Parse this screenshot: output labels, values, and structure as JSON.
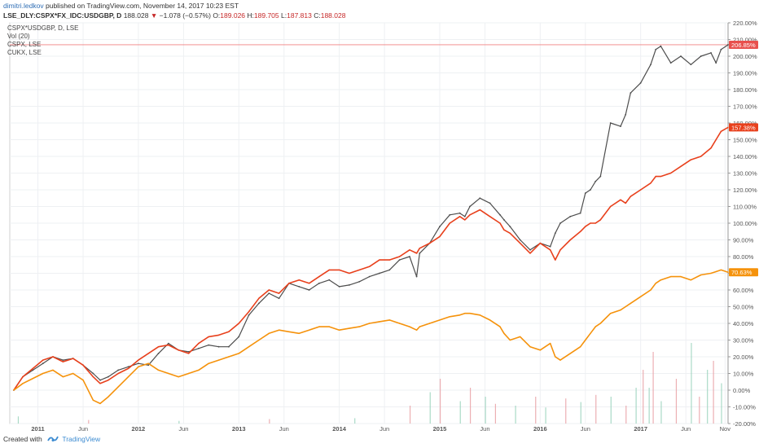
{
  "header": {
    "author": "dimitri.ledkov",
    "published_text": "published on TradingView.com, November 14, 2017 10:23 EST",
    "symbol": "LSE_DLY:CSPX*FX_IDC:USDGBP, D",
    "price": "188.028",
    "change_arrow": "▼",
    "change": "−1.078 (−0.57%)",
    "o_label": "O:",
    "o_value": "189.026",
    "h_label": "H:",
    "h_value": "189.705",
    "l_label": "L:",
    "l_value": "187.813",
    "c_label": "C:",
    "c_value": "188.028"
  },
  "legend": {
    "main": "CSPX*USDGBP, D, LSE",
    "vol": "Vol (20)",
    "cspx": "CSPX, LSE",
    "cukx": "CUKX, LSE"
  },
  "footer": {
    "created_with": "Created with",
    "brand": "TradingView"
  },
  "chart_data": {
    "type": "line",
    "xlabel": "",
    "ylabel": "",
    "y_unit": "%",
    "ylim": [
      -20,
      220
    ],
    "grid": true,
    "x_range": [
      2010.72,
      2017.87
    ],
    "x_tick_labels": [
      {
        "label": "2011",
        "x": 2011.0
      },
      {
        "label": "Jun",
        "x": 2011.45
      },
      {
        "label": "2012",
        "x": 2012.0
      },
      {
        "label": "Jun",
        "x": 2012.45
      },
      {
        "label": "2013",
        "x": 2013.0
      },
      {
        "label": "Jun",
        "x": 2013.45
      },
      {
        "label": "2014",
        "x": 2014.0
      },
      {
        "label": "Jun",
        "x": 2014.45
      },
      {
        "label": "2015",
        "x": 2015.0
      },
      {
        "label": "Jun",
        "x": 2015.45
      },
      {
        "label": "2016",
        "x": 2016.0
      },
      {
        "label": "Jun",
        "x": 2016.45
      },
      {
        "label": "2017",
        "x": 2017.0
      },
      {
        "label": "Jun",
        "x": 2017.45
      },
      {
        "label": "Nov",
        "x": 2017.84
      }
    ],
    "y_ticks": [
      220,
      210,
      200,
      190,
      180,
      170,
      160,
      150,
      140,
      130,
      120,
      110,
      100,
      90,
      80,
      70,
      60,
      50,
      40,
      30,
      20,
      10,
      0,
      -10,
      -20
    ],
    "y_tick_labels": [
      "220.00%",
      "210.00%",
      "200.00%",
      "190.00%",
      "180.00%",
      "170.00%",
      "160.00%",
      "150.00%",
      "140.00%",
      "130.00%",
      "120.00%",
      "110.00%",
      "100.00%",
      "90.00%",
      "80.00%",
      "70.00%",
      "60.00%",
      "50.00%",
      "40.00%",
      "30.00%",
      "20.00%",
      "10.00%",
      "0.00%",
      "-10.00%",
      "-20.00%"
    ],
    "reference_line": 206.85,
    "series": [
      {
        "name": "CSPX*USDGBP, D, LSE",
        "style": "candles",
        "color": "#4d4d4d",
        "last_label": "206.85%",
        "label_color": "#e8504d",
        "x": [
          2010.76,
          2010.85,
          2010.95,
          2011.05,
          2011.15,
          2011.25,
          2011.35,
          2011.45,
          2011.55,
          2011.62,
          2011.7,
          2011.8,
          2011.9,
          2012.0,
          2012.1,
          2012.2,
          2012.3,
          2012.4,
          2012.5,
          2012.6,
          2012.7,
          2012.8,
          2012.9,
          2013.0,
          2013.1,
          2013.2,
          2013.3,
          2013.4,
          2013.5,
          2013.6,
          2013.7,
          2013.8,
          2013.9,
          2014.0,
          2014.1,
          2014.2,
          2014.3,
          2014.4,
          2014.5,
          2014.6,
          2014.7,
          2014.77,
          2014.8,
          2014.9,
          2015.0,
          2015.1,
          2015.2,
          2015.25,
          2015.3,
          2015.4,
          2015.5,
          2015.6,
          2015.64,
          2015.7,
          2015.8,
          2015.9,
          2016.0,
          2016.1,
          2016.15,
          2016.2,
          2016.3,
          2016.4,
          2016.45,
          2016.5,
          2016.55,
          2016.6,
          2016.7,
          2016.8,
          2016.85,
          2016.9,
          2017.0,
          2017.1,
          2017.15,
          2017.2,
          2017.3,
          2017.4,
          2017.5,
          2017.6,
          2017.7,
          2017.75,
          2017.8,
          2017.87
        ],
        "values": [
          0,
          8,
          12,
          16,
          20,
          18,
          19,
          15,
          10,
          6,
          8,
          12,
          14,
          16,
          15,
          22,
          28,
          24,
          23,
          25,
          27,
          26,
          26,
          32,
          45,
          52,
          58,
          55,
          64,
          62,
          60,
          64,
          66,
          62,
          63,
          65,
          68,
          70,
          72,
          78,
          80,
          68,
          82,
          88,
          98,
          105,
          106,
          104,
          110,
          115,
          112,
          105,
          102,
          98,
          90,
          84,
          88,
          86,
          94,
          100,
          104,
          106,
          118,
          120,
          125,
          128,
          160,
          158,
          165,
          178,
          184,
          195,
          204,
          206,
          196,
          200,
          195,
          200,
          202,
          196,
          204,
          206.85
        ]
      },
      {
        "name": "CSPX, LSE",
        "style": "line",
        "color": "#e8401c",
        "last_label": "157.38%",
        "label_color": "#e8401c",
        "x": [
          2010.76,
          2010.85,
          2010.95,
          2011.05,
          2011.15,
          2011.25,
          2011.35,
          2011.45,
          2011.55,
          2011.62,
          2011.7,
          2011.8,
          2011.9,
          2012.0,
          2012.1,
          2012.2,
          2012.3,
          2012.4,
          2012.5,
          2012.6,
          2012.7,
          2012.8,
          2012.9,
          2013.0,
          2013.1,
          2013.2,
          2013.3,
          2013.4,
          2013.5,
          2013.6,
          2013.7,
          2013.8,
          2013.9,
          2014.0,
          2014.1,
          2014.2,
          2014.3,
          2014.4,
          2014.5,
          2014.6,
          2014.7,
          2014.77,
          2014.8,
          2014.9,
          2015.0,
          2015.1,
          2015.2,
          2015.25,
          2015.3,
          2015.4,
          2015.5,
          2015.6,
          2015.64,
          2015.7,
          2015.8,
          2015.9,
          2016.0,
          2016.1,
          2016.15,
          2016.2,
          2016.3,
          2016.4,
          2016.45,
          2016.5,
          2016.55,
          2016.6,
          2016.7,
          2016.8,
          2016.85,
          2016.9,
          2017.0,
          2017.1,
          2017.15,
          2017.2,
          2017.3,
          2017.4,
          2017.5,
          2017.6,
          2017.7,
          2017.75,
          2017.8,
          2017.87
        ],
        "values": [
          0,
          8,
          13,
          18,
          20,
          17,
          19,
          15,
          8,
          4,
          6,
          10,
          13,
          18,
          22,
          26,
          27,
          24,
          22,
          28,
          32,
          33,
          35,
          40,
          47,
          55,
          60,
          58,
          64,
          66,
          64,
          68,
          72,
          72,
          70,
          72,
          74,
          78,
          78,
          80,
          84,
          82,
          85,
          88,
          92,
          100,
          104,
          102,
          105,
          108,
          104,
          100,
          96,
          94,
          88,
          82,
          88,
          84,
          78,
          84,
          90,
          95,
          98,
          100,
          100,
          102,
          110,
          114,
          112,
          116,
          120,
          124,
          128,
          128,
          130,
          134,
          138,
          140,
          145,
          150,
          155,
          157.38
        ]
      },
      {
        "name": "CUKX, LSE",
        "style": "line",
        "color": "#f5920b",
        "last_label": "70.63%",
        "label_color": "#f5920b",
        "x": [
          2010.76,
          2010.85,
          2010.95,
          2011.05,
          2011.15,
          2011.25,
          2011.35,
          2011.45,
          2011.55,
          2011.62,
          2011.7,
          2011.8,
          2011.9,
          2012.0,
          2012.1,
          2012.2,
          2012.3,
          2012.4,
          2012.5,
          2012.6,
          2012.7,
          2012.8,
          2012.9,
          2013.0,
          2013.1,
          2013.2,
          2013.3,
          2013.4,
          2013.5,
          2013.6,
          2013.7,
          2013.8,
          2013.9,
          2014.0,
          2014.1,
          2014.2,
          2014.3,
          2014.4,
          2014.5,
          2014.6,
          2014.7,
          2014.77,
          2014.8,
          2014.9,
          2015.0,
          2015.1,
          2015.2,
          2015.25,
          2015.3,
          2015.4,
          2015.5,
          2015.6,
          2015.64,
          2015.7,
          2015.8,
          2015.9,
          2016.0,
          2016.1,
          2016.15,
          2016.2,
          2016.3,
          2016.4,
          2016.45,
          2016.5,
          2016.55,
          2016.6,
          2016.7,
          2016.8,
          2016.85,
          2016.9,
          2017.0,
          2017.1,
          2017.15,
          2017.2,
          2017.3,
          2017.4,
          2017.5,
          2017.6,
          2017.7,
          2017.75,
          2017.8,
          2017.87
        ],
        "values": [
          0,
          4,
          7,
          10,
          12,
          8,
          10,
          6,
          -6,
          -8,
          -4,
          2,
          8,
          14,
          16,
          12,
          10,
          8,
          10,
          12,
          16,
          18,
          20,
          22,
          26,
          30,
          34,
          36,
          35,
          34,
          36,
          38,
          38,
          36,
          37,
          38,
          40,
          41,
          42,
          40,
          38,
          36,
          38,
          40,
          42,
          44,
          45,
          46,
          46,
          45,
          42,
          38,
          34,
          30,
          32,
          26,
          24,
          28,
          20,
          18,
          22,
          26,
          30,
          34,
          38,
          40,
          46,
          48,
          50,
          52,
          56,
          60,
          64,
          66,
          68,
          68,
          66,
          69,
          70,
          71,
          72,
          70.63
        ]
      }
    ],
    "volume_series": {
      "name": "Vol (20)",
      "note_units": "relative height 0-1 of volume pane",
      "x": [
        2010.8,
        2011.5,
        2012.4,
        2013.3,
        2014.15,
        2014.7,
        2014.9,
        2015.0,
        2015.2,
        2015.3,
        2015.45,
        2015.55,
        2015.75,
        2015.95,
        2016.05,
        2016.25,
        2016.4,
        2016.55,
        2016.7,
        2016.85,
        2016.95,
        2017.02,
        2017.08,
        2017.12,
        2017.2,
        2017.35,
        2017.5,
        2017.58,
        2017.66,
        2017.72,
        2017.8
      ],
      "values": [
        0.08,
        0.04,
        0.03,
        0.05,
        0.06,
        0.2,
        0.35,
        0.5,
        0.25,
        0.4,
        0.3,
        0.22,
        0.2,
        0.3,
        0.18,
        0.28,
        0.24,
        0.32,
        0.3,
        0.2,
        0.4,
        0.6,
        0.4,
        0.8,
        0.25,
        0.5,
        0.9,
        0.3,
        0.6,
        0.7,
        0.45
      ]
    }
  }
}
